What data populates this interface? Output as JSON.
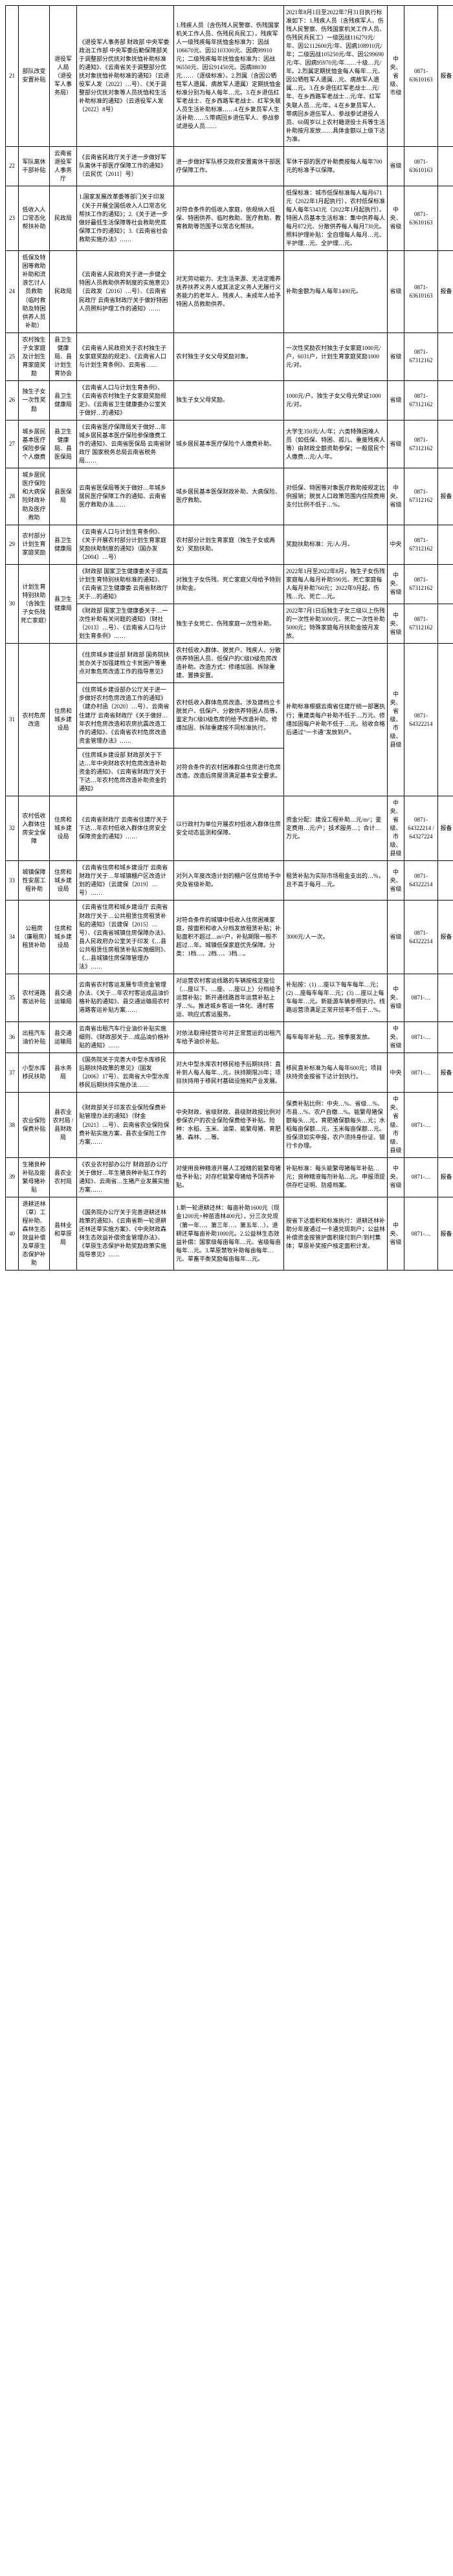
{
  "rows": [
    {
      "num": "21",
      "name": "部队改变安置补贴",
      "dept": "退役军人局（退役军人事务局）",
      "basis": "《退役军人事务部 财政部 中央军委政治工作部 中央军委后勤保障部关于调整部分优抚对象抚恤补助标准的通知》、《云南省关于调整部分优抚对象抚恤补助标准的通知》（云退役军人发〔2022〕…号）、《关于调整部分优抚对象等人员抚恤和生活补助标准的通知》（云退役军人发〔2022〕8号）",
      "std": "1.残疾人员（含伤残人民警察、伤残国家机关工作人员、伤残民兵民工），残疾军人一级残疾每年抚恤金标准为：因战106670元、因公103300元、因病99910元；二级残疾每年抚恤金标准为：因战96550元、因公91450元、因病88030元……（逐级标准）。2.烈属（含因公牺牲军人遗属、病故军人遗属）定期抚恤金标准分别为每人每年…元。3.在乡退伍红军老战士、在乡西路军老战士、红军失联人员生活补助标准……4.在乡复员军人生活补助……5.带病回乡退伍军人、参战参试退役人员……",
      "local": "2021年8月1日至2022年7月31日执行标准如下：1.残疾人员（含残疾军人、伤残人民警察、伤残国家机关工作人员、伤残民兵民工）一级因战116270元/年、因公112600元/年、因病108910元/年；二级因战105250元/年、因公99690元/年、因病95970元/年……十级…元/年。2.烈属定期抚恤金每人每年…元、因公牺牲军人遗属…元、病故军人遗属…元。3.在乡退伍红军老战士…元/年、在乡西路军老战士…元/年、红军失联人员…元/年。4.在乡复员军人、带病回乡退伍军人、参战参试退役人员、60周岁以上农村籍退役士兵等生活补助按月发放……具体金额以上级下达为准。",
      "level": "中央、省级、市级",
      "phone": "0871-63610163",
      "rule": "报备"
    },
    {
      "num": "22",
      "name": "军队离休干部补贴",
      "dept": "云南省退役军人事务厅",
      "basis": "《云南省民政厅关于进一步做好军队离休干部医疗保障工作的通知》（云民优〔2011〕号）",
      "std": "进一步做好军队移交政府安置离休干部医疗保障工作。",
      "local": "军休干部的医疗补助费按每人每年700元的标准予以保障。",
      "level": "省级",
      "phone": "0871-63610163",
      "rule": ""
    },
    {
      "num": "23",
      "name": "低收入人口常态化帮扶补助",
      "dept": "民政局",
      "basis": "1.国家发展改革委等部门关于印发《关于开展全国低收入人口常态化帮扶工作的通知》；2.《关于进一步做好最低生活保障等社会救助兜底保障工作的通知》；3.《云南省社会救助实施办法》……",
      "std": "对符合条件的低收入家庭，依规纳入低保、特困供养、临时救助、医疗救助、教育救助等范围予以常态化帮扶。",
      "local": "低保标准：城市低保标准每人每月671元（2022年1月起执行），农村低保标准每人每年5343元（2022年1月起执行）。特困人员基本生活标准：集中供养每人每月872元、分散供养每人每月730元。照料护理补贴：全自理每人每月…元、半护理…元、全护理…元。",
      "level": "中央、省级",
      "phone": "0871-63610163",
      "rule": ""
    },
    {
      "num": "24",
      "name": "低保及特困等救助补助和流浪乞讨人员救助（临时救助及特困供养人员补助）",
      "dept": "民政局",
      "basis": "《云南省人民政府关于进一步健全特困人员救助供养制度的实施意见》（云政发〔2016〕…号）、《云南省民政厅 云南省财政厅关于做好特困人员照料护理工作的通知》……",
      "std": "对无劳动能力、无生活来源、无法定赡养抚养扶养义务人或其法定义务人无履行义务能力的老年人、残疾人、未成年人给予特困人员救助供养。",
      "local": "补助金额为每人每年1400元。",
      "level": "省级",
      "phone": "0871-63610163",
      "rule": "报备"
    },
    {
      "num": "25",
      "name": "农村独生子女家庭及计划生育家庭奖励",
      "dept": "县卫生健康局、县计划生育协会",
      "basis": "《云南省人民政府关于农村独生子女家庭奖励的规定》、《云南省人口与计划生育条例》、云南省……",
      "std": "农村独生子女父母奖励对象。",
      "local": "一次性奖励农村独生子女家庭1000元/户，6031户，计划生育家庭奖励1000元/对。",
      "level": "省级",
      "phone": "0871-67312162",
      "rule": ""
    },
    {
      "num": "26",
      "name": "独生子女一次性奖励",
      "dept": "县卫生健康局",
      "basis": "《云南省人口与计划生育条例》、《云南省农村独生子女家庭奖励规定》、《云南省卫生健康委办公室关于做好…的通知》",
      "std": "独生子女父母奖励。",
      "local": "1000元/户。独生子女父母光荣证1000元/对。",
      "level": "省级",
      "phone": "0871-67312162",
      "rule": ""
    },
    {
      "num": "27",
      "name": "城乡居民基本医疗保险参保个人缴费",
      "dept": "县卫生健康局、县医保局",
      "basis": "《云南省医疗保障局关于做好…年城乡居民基本医疗保险参保缴费工作的通知》、云南省医保局 云南省财政厅 国家税务总局云南省税务局……",
      "std": "城乡居民基本医疗保险个人缴费补助。",
      "local": "大学生350元/人/年；六类特殊困难人员（如低保、特困、孤儿、重度残疾人等）由财政全额资助参保；一般居民个人缴费…元/人/年。",
      "level": "省级",
      "phone": "0871-67312162",
      "rule": ""
    },
    {
      "num": "28",
      "name": "城乡居民医疗保险和大病保险财政补助及医疗救助",
      "dept": "县医保局",
      "basis": "云南省医保局等关于做好…年城乡居民医疗保障工作的通知、云南省医疗救助办法……",
      "std": "城乡居民基本医保财政补助、大病保险、医疗救助。",
      "local": "对低保、特困等对象医疗救助按规定比例报销；脱贫人口政策范围内住院费用支付比例不低于…%。",
      "level": "中央、省级",
      "phone": "0871-67312162",
      "rule": "报备"
    },
    {
      "num": "29",
      "name": "农村部分计划生育家庭奖励",
      "dept": "县卫生健康局",
      "basis": "《云南省人口与计划生育条例》、《关于开展农村部分计划生育家庭奖励扶助制度的通知》（国办发〔2004〕…号）",
      "std": "农村部分计划生育家庭（独生子女或两女）奖励扶助。",
      "local": "奖励扶助标准：元/人/月。",
      "level": "中央",
      "phone": "0871-67312162",
      "rule": ""
    },
    {
      "rownum": "30a",
      "name": "计划生育特别扶助（含独生子女伤残死亡家庭）",
      "dept": "县卫生健康局",
      "basis": "《财政部 国家卫生健康委关于提高计划生育特别扶助标准的通知》、《云南省卫生健康委 云南省财政厅关于…的通知》",
      "std": "对独生子女伤残、死亡家庭父母给予特别扶助金。",
      "local": "2022年1月至2022年8月，独生子女伤残家庭每人每月补助590元、死亡家庭每人每月补助760元；2022年9月起，伤残…元、死亡…元。",
      "level": "中央、省级",
      "phone": "0871-67312162",
      "rule": ""
    },
    {
      "rownum": "30b",
      "name": "计划生育特殊困难家庭一次性补助",
      "dept": "县卫生健康局",
      "basis": "《财政部 国家卫生健康委关于…一次性补助有关问题的通知》（财社〔2013〕…号）、《云南省人口与计划生育条例》……",
      "std": "独生子女死亡、伤残家庭一次性补助。",
      "local": "2022年7月1日后独生子女三级以上伤残的一次性补助3000元、死亡一次性补助5000元；特殊家庭每月扶助金按月发放。",
      "level": "中央、省级",
      "phone": "0871-67312162",
      "rule": ""
    },
    {
      "rownum": "31a",
      "num": "31",
      "name": "农村危房改造",
      "dept": "住房和城乡建设局",
      "basis": "《住房城乡建设部 财政部 国务院扶贫办关于加强建档立卡贫困户等重点对象危房改造工作的指导意见》",
      "std": "农村低收入群体、脱贫户、残疾人、分散供养特困人员、低保户的C级D级危房改造补助。改造方式：修缮加固、拆除重建、置换安置。",
      "local": "补助标准根据云南省住建厅统一部署执行；重建类每户补助不低于…万元、修缮加固每户补助不低于…元。验收合格后通过\"一卡通\"发放到户。",
      "level": "中央、省级、市级、县级",
      "phone": "0871-64322214",
      "rule": ""
    },
    {
      "rownum": "31b",
      "name": "农村危房改造",
      "dept": "住房和城乡建设局",
      "basis": "《住房城乡建设部办公厅关于进一步做好农村危房改造工作的通知》（建办村函〔2020〕…号）、云南省住建厅 云南省财政厅《关于做好…年农村危房改造和农房抗震改造工作的通知》、《云南省农村危房改造资金管理办法》……",
      "std": "农村低收入群体危房改造。涉及建档立卡脱贫户、低保户、分散供养特困人员等，鉴定为C级D级危房的给予改造补助。修缮加固、拆除重建按不同标准执行。",
      "local": "按全省统一补助标准执行：拆除重建类补助…万元/户，修缮加固类补助…万元/户；抗震改造省级补助1万元/户，市县配套…元/户。验收合格通过一卡通直接发放到户。",
      "level": "中央、省级、市级、县级",
      "phone": "0871-64322214",
      "rule": ""
    },
    {
      "rownum": "31c",
      "name": "农村危房改造",
      "dept": "住房和城乡建设局",
      "basis": "《住房城乡建设部 财政部关于下达…年中央财政农村危房改造补助资金的通知》、《云南省财政厅关于下达…年农村危房改造补助资金的通知》",
      "std": "对符合条件的农村困难群众住房进行危房改造。改造后房屋须满足基本安全要求。",
      "local": "同上。",
      "level": "中央、省级、市级、县级",
      "phone": "0871-64322214",
      "rule": ""
    },
    {
      "num": "32",
      "name": "农村低收入群体住房安全保障",
      "dept": "住房和城乡建设局",
      "basis": "《云南省财政厅 云南省住建厅关于下达…年农村低收入群体住房安全保障资金的通知》……",
      "std": "以行政村为单位开展农村低收入群体住房安全动态监测和保障。",
      "local": "资金分配：建设工程补助…元/m²；鉴定费用…元/户；技术服务…；合计…万元。",
      "level": "中央、省级、市级、县级",
      "phone": "0871-64322214 / 64327224",
      "rule": "报备"
    },
    {
      "num": "33",
      "name": "城镇保障性安居工程补助",
      "dept": "住房和城乡建设局",
      "basis": "《云南省住房和城乡建设厅 云南省财政厅关于…年城镇棚户区改造计划的通知》（云建保〔2019〕…号）……",
      "std": "对列入年度改造计划的棚户区住房给予中央及省级补助。",
      "local": "租赁补贴为实际市场租金支出的…%，且不高于每月…元。",
      "level": "中央、省级",
      "phone": "0871-64322214",
      "rule": ""
    },
    {
      "num": "34",
      "name": "公租房（廉租房）租赁补助",
      "dept": "住房和城乡建设局",
      "basis": "《云南省住房和城乡建设厅 云南省财政厅关于…公共租赁住房租赁补贴的通知》（云建保〔2015〕…号）、《云南省城镇住房保障办法》、县人民政府办公室关于印发《…县公共租赁住房租赁补贴实施细则》、《…县城镇住房保障管理办法》……",
      "std": "对符合条件的城镇中低收入住房困难家庭，按面积和收入分档发放租赁补贴；补贴面积不超过…m²/户，补贴期限一般不超过…年。城镇低保家庭优先保障。分类：1档…、2档…、3档…。",
      "local": "3000元/人一次。",
      "level": "省级",
      "phone": "0871-64322214",
      "rule": "报备"
    },
    {
      "num": "35",
      "name": "农村道路客运补贴",
      "dept": "县交通运输局",
      "basis": "云南省农村客运发展专项资金管理办法、《关于…年农村客运成品油价格补贴的通知》、县交通运输局农村道路客运补贴方案……",
      "std": "对运营农村客运线路的车辆按核定座位（…座以下、…座、…座以上）分档给予运营补贴；新开通线路首年运营补贴上浮…%。推进城乡客运一体化、通村客运、响应式客运服务。",
      "local": "补贴按：(1) …座以下每车每年…元；(2) …座每车每年…元；(3) …座以上每车每年…元。新能源车辆参照执行。线路运营须满足正常开班率不低于…%。",
      "level": "中央、省级",
      "phone": "0871-…",
      "rule": ""
    },
    {
      "num": "36",
      "name": "出租汽车油价补贴",
      "dept": "县交通运输局",
      "basis": "云南省出租汽车行业油价补贴实施细则、《财政部关于…成品油价格补贴的通知》……",
      "std": "对依法取得经营许可并正常营运的出租汽车给予油价补贴。",
      "local": "每车每年补贴…元，按季度发放。",
      "level": "中央、省级",
      "phone": "0871-…",
      "rule": ""
    },
    {
      "num": "37",
      "name": "小型水库移民扶助",
      "dept": "县水务局",
      "basis": "《国务院关于完善大中型水库移民后期扶持政策的意见》（国发〔2006〕17号）、云南省大中型水库移民后期扶持实施办法……",
      "std": "对大中型水库农村移民给予后期扶持：直补到人每人每年…元，扶持期限20年；项目扶持用于移民村基础设施和产业发展。",
      "local": "移民直补标准为每人每年600元；项目扶持资金按省下达计划执行。",
      "level": "中央",
      "phone": "0871-…",
      "rule": "报备"
    },
    {
      "num": "38",
      "name": "农业保险保费补贴",
      "dept": "县农业农村局 / 县财政局",
      "basis": "《财政部关于印发农业保险保费补贴管理办法的通知》（财金〔2021〕…号）、云南省农业保险保费补贴实施方案、县农业保险工作方案……",
      "std": "中央财政、省级财政、县级财政按比例对参保农户的农业保险保费给予补贴。险种：水稻、玉米、油菜、能繁母猪、育肥猪、森林、…等。",
      "local": "保费补贴比例：中央…%、省级…%、市县…%、农户自缴…%。能繁母猪保额每头…元，育肥猪保额每头…元；水稻每亩保额…元，玉米每亩保额…元。投保须如实申报，农户须持身份证、银行卡办理。",
      "level": "中央、省级、市级、县级",
      "phone": "0871-…",
      "rule": ""
    },
    {
      "num": "39",
      "name": "生猪良种补贴及能繁母猪补贴",
      "dept": "县农业农村局",
      "basis": "《农业农村部办公厅 财政部办公厅关于做好…年生猪良种补贴工作的通知》、云南省…生猪产业发展实施方案……",
      "std": "对使用良种精液开展人工授精的能繁母猪给予补贴；对存栏能繁母猪给予饲养补贴。",
      "local": "补贴标准：每头能繁母猪每年补贴…元；良种精液每剂补贴…元。申报须提供存栏证明、防疫档案。",
      "level": "中央、省级",
      "phone": "0871-…",
      "rule": "报备"
    },
    {
      "num": "40",
      "name": "退耕还林（草）工程补助、森林生态效益补偿及草原生态保护补助",
      "dept": "县林业和草原局",
      "basis": "《国务院办公厅关于完善退耕还林政策的通知》、《云南省新一轮退耕还林还草实施方案》、《中央财政森林生态效益补偿资金管理办法》、《草原生态保护补助奖励政策实施指导意见》……",
      "std": "1.新一轮退耕还林：每亩补助1600元（现金1200元+种苗造林400元），分三次兑现（第一年…、第三年…、第五年…）。退耕还草每亩补助1000元。2.公益林生态效益补偿：国家级每亩每年…元、省级每亩每年…元。3.草原禁牧补助每亩每年…元、草畜平衡奖励每亩每年…元。",
      "local": "按省下达面积和标准执行：退耕还林补助分年度通过一卡通兑现到户；公益林补偿资金按管护面积拨付到户/到村集体；草原补奖按户核定面积计发。",
      "level": "中央、省级",
      "phone": "0871-…",
      "rule": "报备"
    }
  ],
  "col_widths": {
    "num": 20,
    "name": 48,
    "dept": 42,
    "basis": 150,
    "std": 170,
    "local": 160,
    "level": 26,
    "phone": 52,
    "rule": 26
  }
}
